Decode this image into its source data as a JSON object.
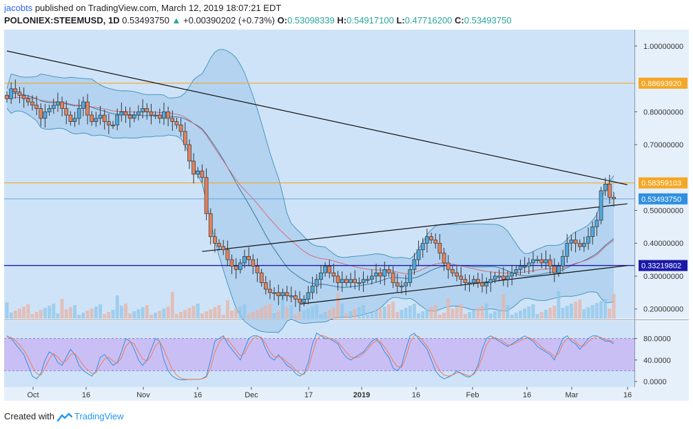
{
  "header": {
    "author": "jacobts",
    "published_text": "published on TradingView.com, March 12, 2019 18:07:21 EDT",
    "symbol": "POLONIEX:STEEMUSD, 1D",
    "last": "0.53493750",
    "change": "+0.00390202 (+0.73%)",
    "o_label": "O:",
    "o_value": "0.53098339",
    "h_label": "H:",
    "h_value": "0.54917100",
    "l_label": "L:",
    "l_value": "0.47716200",
    "c_label": "C:",
    "c_value": "0.53493750"
  },
  "footer": {
    "created_with": "Created with",
    "brand": "TradingView"
  },
  "colors": {
    "bg": "#cfe3f8",
    "up": "#53a9dc",
    "down": "#e2825f",
    "orange_line": "#f5a623",
    "blue_line": "#1a1aa8",
    "bb_fill": "#a9cdef",
    "stoch_band": "#c9b8f5",
    "stoch_k": "#2f8fe0",
    "stoch_d": "#f07c53"
  },
  "chart_data": [
    {
      "type": "candlestick",
      "ylim": [
        0.17,
        1.05
      ],
      "ytick_labels": [
        "1.00000000",
        "0.80000000",
        "0.70000000",
        "0.50000000",
        "0.40000000",
        "0.30000000",
        "0.20000000"
      ],
      "yticks": [
        1.0,
        0.8,
        0.7,
        0.5,
        0.4,
        0.3,
        0.2
      ],
      "xtick_labels": [
        "Oct",
        "16",
        "Nov",
        "16",
        "Dec",
        "17",
        "2019",
        "16",
        "Feb",
        "16",
        "Mar",
        "16"
      ],
      "price_tags": [
        {
          "value": 0.8869392,
          "label": "0.88693920",
          "color": "#f5a623"
        },
        {
          "value": 0.58359103,
          "label": "0.58359103",
          "color": "#f5a623"
        },
        {
          "value": 0.5349375,
          "label": "0.53493750",
          "color": "#2f8fe0"
        },
        {
          "value": 0.33219802,
          "label": "0.33219802",
          "color": "#1a1aa8"
        }
      ],
      "closes": [
        0.84,
        0.87,
        0.86,
        0.85,
        0.84,
        0.83,
        0.82,
        0.81,
        0.78,
        0.8,
        0.81,
        0.82,
        0.83,
        0.81,
        0.79,
        0.77,
        0.78,
        0.81,
        0.83,
        0.79,
        0.77,
        0.78,
        0.79,
        0.77,
        0.76,
        0.76,
        0.79,
        0.8,
        0.79,
        0.78,
        0.79,
        0.8,
        0.81,
        0.8,
        0.79,
        0.79,
        0.78,
        0.8,
        0.78,
        0.77,
        0.76,
        0.74,
        0.7,
        0.65,
        0.61,
        0.62,
        0.6,
        0.49,
        0.42,
        0.4,
        0.39,
        0.38,
        0.35,
        0.33,
        0.32,
        0.34,
        0.36,
        0.35,
        0.33,
        0.31,
        0.28,
        0.26,
        0.25,
        0.25,
        0.24,
        0.25,
        0.24,
        0.24,
        0.23,
        0.22,
        0.23,
        0.25,
        0.27,
        0.29,
        0.31,
        0.33,
        0.31,
        0.3,
        0.28,
        0.29,
        0.28,
        0.29,
        0.28,
        0.28,
        0.29,
        0.29,
        0.3,
        0.31,
        0.3,
        0.32,
        0.31,
        0.28,
        0.27,
        0.27,
        0.28,
        0.32,
        0.35,
        0.38,
        0.4,
        0.42,
        0.41,
        0.4,
        0.37,
        0.34,
        0.32,
        0.31,
        0.3,
        0.29,
        0.28,
        0.28,
        0.29,
        0.28,
        0.27,
        0.28,
        0.29,
        0.3,
        0.3,
        0.29,
        0.3,
        0.31,
        0.32,
        0.33,
        0.33,
        0.34,
        0.35,
        0.35,
        0.34,
        0.35,
        0.33,
        0.31,
        0.33,
        0.36,
        0.4,
        0.41,
        0.4,
        0.39,
        0.4,
        0.42,
        0.45,
        0.47,
        0.56,
        0.58,
        0.54,
        0.535
      ],
      "reference_lines": [
        {
          "type": "descending-trendline"
        },
        {
          "type": "ascending-trendline-upper"
        },
        {
          "type": "ascending-trendline-lower"
        }
      ]
    },
    {
      "type": "line",
      "title": "",
      "ylim": [
        0,
        100
      ],
      "ytick_labels": [
        "80.0000",
        "40.0000",
        "0.0000"
      ],
      "yticks": [
        80,
        40,
        0
      ],
      "band": [
        20,
        80
      ],
      "series": [
        {
          "values": [
            85,
            80,
            70,
            60,
            50,
            30,
            10,
            5,
            15,
            40,
            55,
            50,
            35,
            30,
            45,
            60,
            50,
            30,
            20,
            15,
            10,
            20,
            45,
            50,
            40,
            30,
            35,
            55,
            80,
            75,
            60,
            40,
            30,
            40,
            60,
            80,
            75,
            40,
            20,
            10,
            5,
            3,
            3,
            4,
            4,
            4,
            5,
            10,
            40,
            75,
            80,
            85,
            70,
            60,
            50,
            40,
            60,
            80,
            85,
            85,
            80,
            60,
            45,
            40,
            50,
            40,
            30,
            25,
            15,
            10,
            15,
            35,
            70,
            90,
            85,
            80,
            80,
            75,
            70,
            55,
            45,
            40,
            45,
            50,
            55,
            65,
            75,
            80,
            70,
            55,
            45,
            25,
            20,
            30,
            60,
            85,
            90,
            80,
            70,
            60,
            40,
            20,
            10,
            5,
            8,
            12,
            20,
            15,
            10,
            8,
            15,
            30,
            60,
            80,
            85,
            80,
            75,
            70,
            65,
            70,
            75,
            80,
            85,
            80,
            75,
            65,
            60,
            55,
            50,
            40,
            60,
            80,
            85,
            75,
            70,
            60,
            70,
            80,
            85,
            85,
            80,
            75,
            75,
            70
          ]
        },
        {
          "values": [
            82,
            82,
            76,
            68,
            58,
            45,
            28,
            15,
            12,
            25,
            42,
            52,
            45,
            36,
            38,
            50,
            52,
            42,
            30,
            22,
            15,
            16,
            30,
            42,
            45,
            38,
            34,
            44,
            65,
            74,
            70,
            55,
            42,
            38,
            48,
            66,
            74,
            60,
            40,
            22,
            12,
            6,
            4,
            4,
            4,
            4,
            5,
            8,
            25,
            55,
            72,
            82,
            78,
            68,
            58,
            48,
            52,
            68,
            80,
            84,
            82,
            70,
            55,
            46,
            46,
            44,
            36,
            30,
            22,
            15,
            13,
            25,
            52,
            78,
            86,
            84,
            80,
            78,
            74,
            64,
            54,
            46,
            44,
            46,
            52,
            60,
            70,
            76,
            74,
            64,
            52,
            38,
            28,
            26,
            45,
            72,
            86,
            84,
            76,
            66,
            52,
            34,
            20,
            12,
            10,
            12,
            16,
            16,
            13,
            10,
            13,
            24,
            45,
            68,
            80,
            82,
            78,
            74,
            68,
            68,
            72,
            76,
            80,
            82,
            78,
            72,
            64,
            58,
            54,
            46,
            52,
            70,
            80,
            80,
            74,
            66,
            66,
            74,
            80,
            84,
            82,
            78,
            76,
            74
          ]
        }
      ]
    }
  ]
}
